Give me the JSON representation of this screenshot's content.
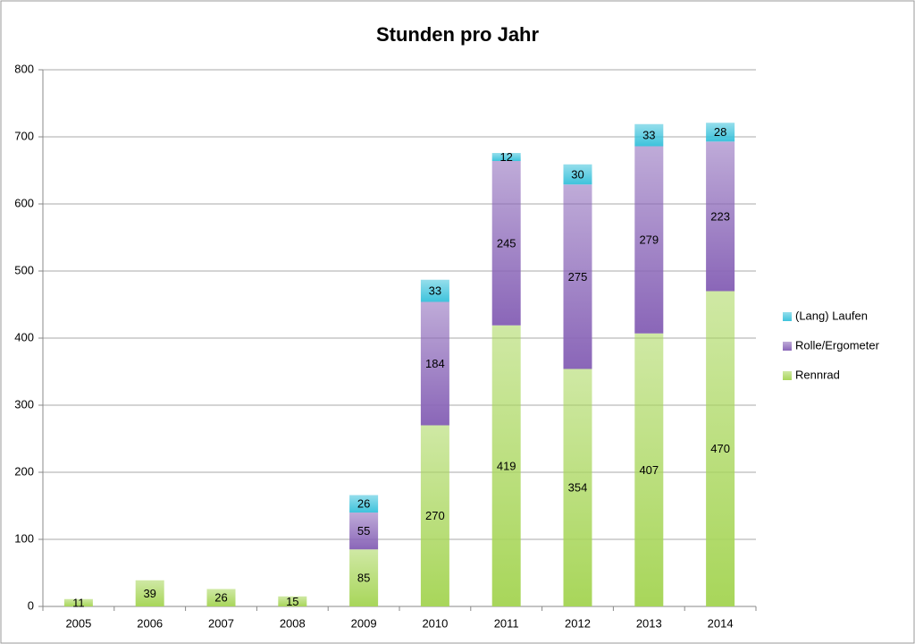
{
  "chart_data": {
    "type": "bar",
    "stacked": true,
    "title": "Stunden pro Jahr",
    "categories": [
      "2005",
      "2006",
      "2007",
      "2008",
      "2009",
      "2010",
      "2011",
      "2012",
      "2013",
      "2014"
    ],
    "series": [
      {
        "name": "Rennrad",
        "color": "#a8d65a",
        "values": [
          11,
          39,
          26,
          15,
          85,
          270,
          419,
          354,
          407,
          470
        ]
      },
      {
        "name": "Rolle/Ergometer",
        "color": "#8a66b8",
        "values": [
          null,
          null,
          null,
          null,
          55,
          184,
          245,
          275,
          279,
          223
        ]
      },
      {
        "name": "(Lang) Laufen",
        "color": "#3ec3dc",
        "values": [
          null,
          null,
          null,
          null,
          26,
          33,
          12,
          30,
          33,
          28
        ]
      }
    ],
    "ylim": [
      0,
      800
    ],
    "yticks": [
      0,
      100,
      200,
      300,
      400,
      500,
      600,
      700,
      800
    ],
    "grid": true,
    "legend": "right"
  }
}
